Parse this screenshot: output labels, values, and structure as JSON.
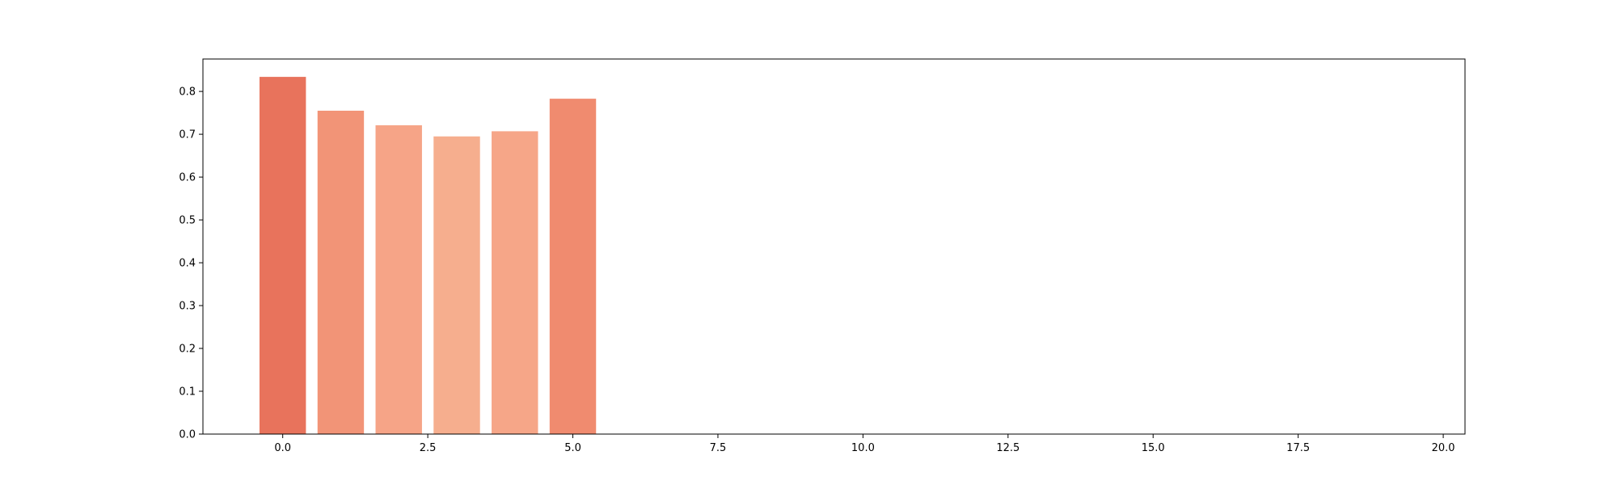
{
  "chart_data": {
    "type": "bar",
    "title": "",
    "xlabel": "",
    "ylabel": "",
    "x": [
      0,
      1,
      2,
      3,
      4,
      5
    ],
    "values": [
      0.834,
      0.755,
      0.721,
      0.695,
      0.707,
      0.783
    ],
    "bar_width": 0.8,
    "bar_colors": [
      "#e8735c",
      "#f29477",
      "#f6a487",
      "#f6ae8e",
      "#f6a688",
      "#f08b6f"
    ],
    "xlim": [
      -1.375,
      20.375
    ],
    "ylim": [
      0,
      0.8757
    ],
    "xticks": [
      0.0,
      2.5,
      5.0,
      7.5,
      10.0,
      12.5,
      15.0,
      17.5,
      20.0
    ],
    "xtick_labels": [
      "0.0",
      "2.5",
      "5.0",
      "7.5",
      "10.0",
      "12.5",
      "15.0",
      "17.5",
      "20.0"
    ],
    "yticks": [
      0.0,
      0.1,
      0.2,
      0.3,
      0.4,
      0.5,
      0.6,
      0.7,
      0.8
    ],
    "ytick_labels": [
      "0.0",
      "0.1",
      "0.2",
      "0.3",
      "0.4",
      "0.5",
      "0.6",
      "0.7",
      "0.8"
    ],
    "grid": false,
    "legend": "none"
  }
}
